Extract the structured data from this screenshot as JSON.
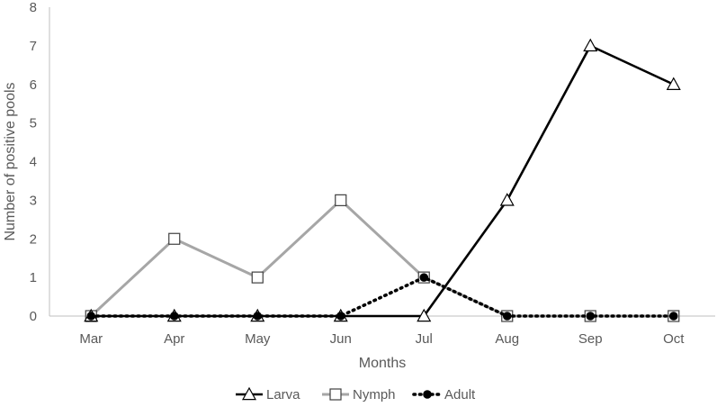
{
  "chart_data": {
    "type": "line",
    "categories": [
      "Mar",
      "Apr",
      "May",
      "Jun",
      "Jul",
      "Aug",
      "Sep",
      "Oct"
    ],
    "series": [
      {
        "name": "Larva",
        "values": [
          0,
          0,
          0,
          0,
          0,
          3,
          7,
          6
        ],
        "color": "#000000",
        "line": "solid",
        "marker": "triangle"
      },
      {
        "name": "Nymph",
        "values": [
          0,
          2,
          1,
          3,
          1,
          0,
          0,
          0
        ],
        "color": "#a6a6a6",
        "line": "solid",
        "marker": "square"
      },
      {
        "name": "Adult",
        "values": [
          0,
          0,
          0,
          0,
          1,
          0,
          0,
          0
        ],
        "color": "#000000",
        "line": "dotted",
        "marker": "circle"
      }
    ],
    "title": "",
    "xlabel": "Months",
    "ylabel": "Number of positive pools",
    "ylim": [
      0,
      8
    ],
    "yticks": [
      0,
      1,
      2,
      3,
      4,
      5,
      6,
      7,
      8
    ],
    "grid": false,
    "legend_position": "bottom"
  }
}
